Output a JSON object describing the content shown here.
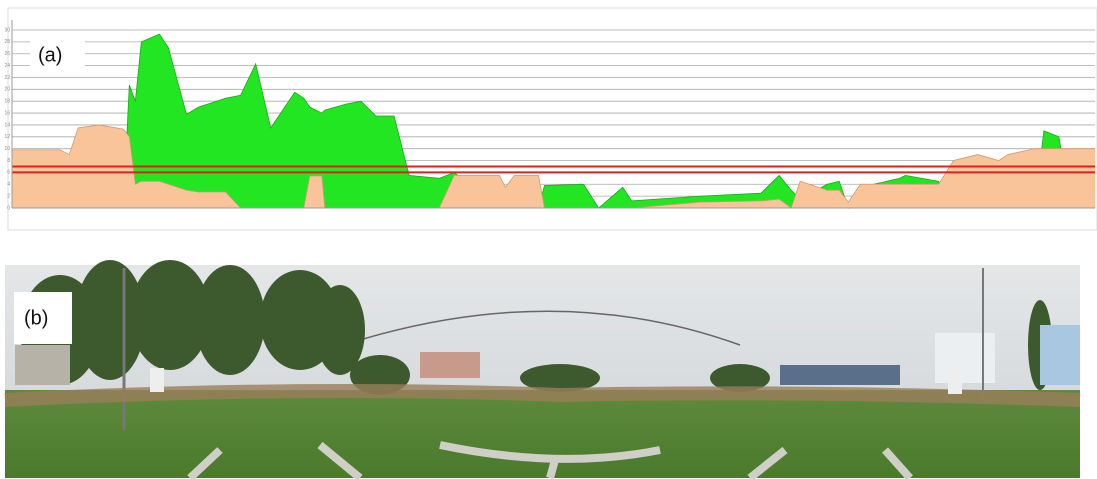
{
  "chart_data": {
    "type": "area",
    "annotation": "(a)",
    "x": [
      0,
      16,
      19,
      22,
      29,
      37,
      39,
      41,
      43,
      49,
      52,
      58,
      62,
      71,
      76,
      81,
      83,
      86,
      94,
      97,
      99,
      103,
      104,
      111,
      116,
      121,
      127,
      132,
      142,
      147,
      162,
      164,
      167,
      175,
      177,
      190,
      195,
      203,
      206,
      229,
      249,
      255,
      259,
      262,
      271,
      275,
      278,
      282,
      295,
      297,
      308,
      313,
      321,
      328,
      331,
      340,
      343,
      348,
      352,
      360
    ],
    "series": [
      {
        "color": "#22e622",
        "values": [
          0,
          0,
          0,
          0,
          0,
          0,
          20.7,
          18,
          28,
          29.3,
          27,
          15.8,
          17,
          18.5,
          19,
          24.3,
          20,
          13.5,
          19.5,
          18.5,
          17,
          16,
          16.5,
          17.5,
          18,
          15.5,
          15.5,
          5.5,
          5,
          6,
          0,
          0,
          0,
          0,
          3.8,
          4,
          0,
          3.5,
          1.2,
          2,
          2.5,
          5.5,
          3,
          1.5,
          4,
          4.5,
          0,
          3.5,
          5,
          5.5,
          4.5,
          0,
          0,
          0,
          0,
          0,
          13,
          12,
          0,
          0
        ]
      },
      {
        "color": "#f9c49a",
        "values": [
          9.8,
          9.8,
          9,
          13.5,
          14,
          13.3,
          12,
          4,
          4.5,
          4.5,
          4,
          3,
          2.7,
          2.7,
          0,
          0,
          0,
          0,
          0,
          0,
          5.4,
          5.4,
          0,
          0,
          0,
          0,
          0,
          0,
          0,
          5.5,
          5.5,
          3.5,
          5.5,
          5.5,
          0,
          0,
          0,
          0,
          0,
          1,
          1.2,
          1.5,
          0,
          4.5,
          3,
          3,
          1,
          4,
          4,
          4,
          4,
          8,
          9,
          8,
          9,
          10,
          10,
          10,
          10,
          10
        ]
      }
    ],
    "reference_lines": [
      6,
      7
    ],
    "reference_color": "#e0201c",
    "xlim": [
      0,
      360
    ],
    "ylim": [
      0,
      30
    ],
    "yticks": [
      0,
      2,
      4,
      6,
      8,
      10,
      12,
      14,
      16,
      18,
      20,
      22,
      24,
      26,
      28,
      30
    ],
    "grid": true
  },
  "photo": {
    "label": "(b)"
  }
}
